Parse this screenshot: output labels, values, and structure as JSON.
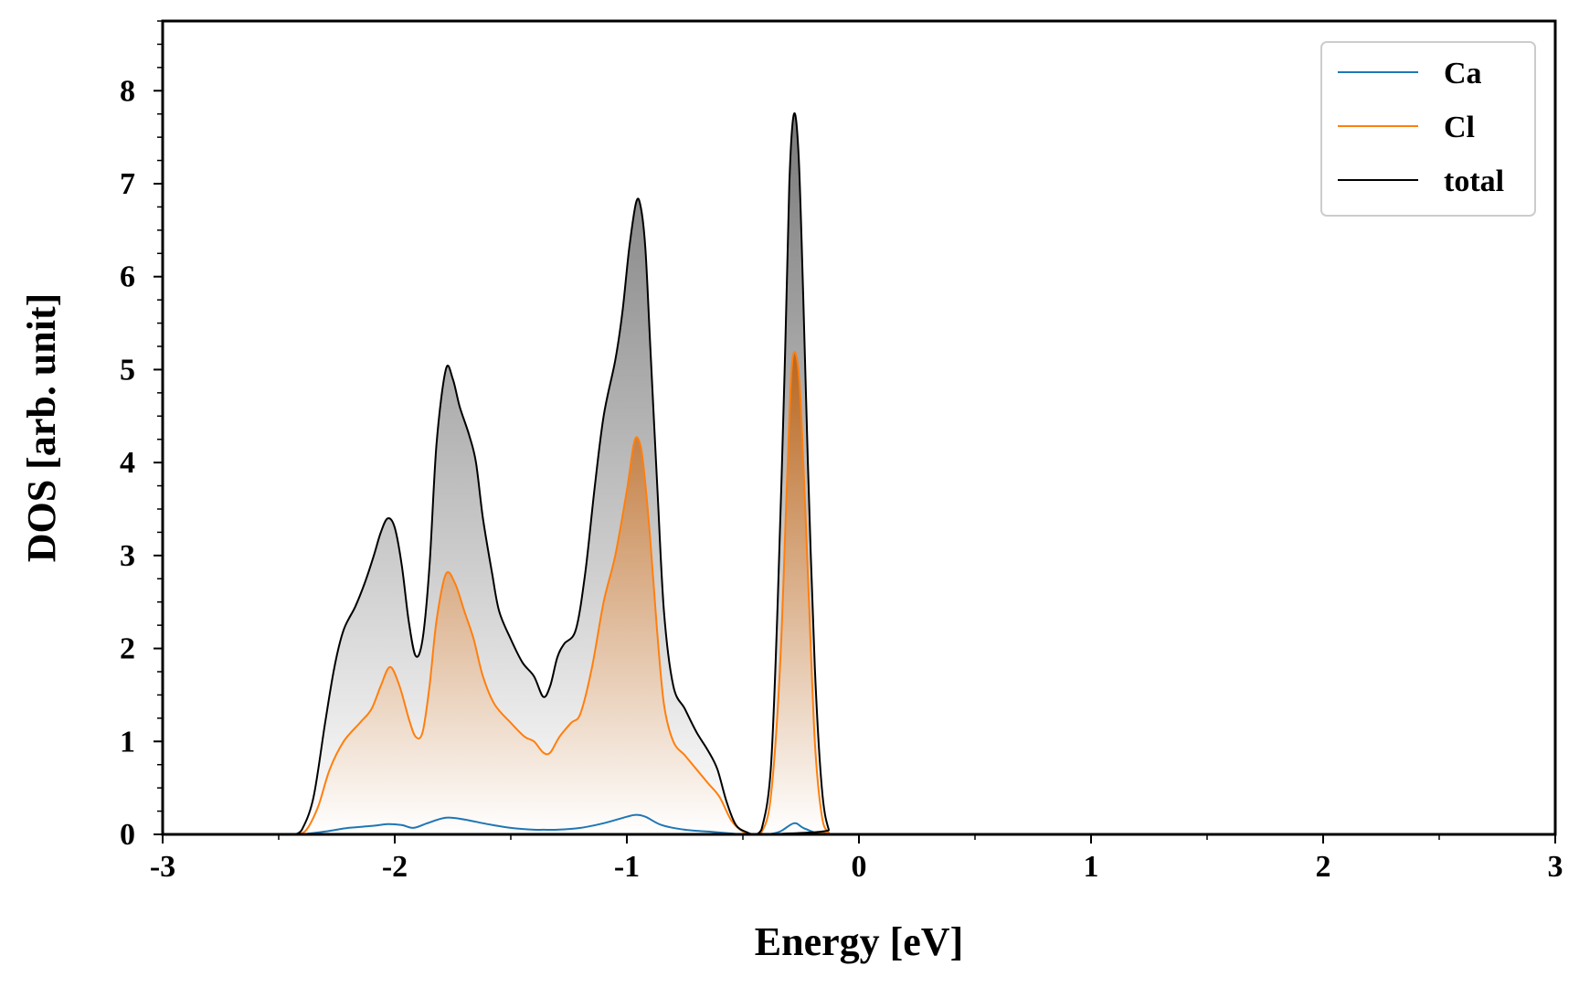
{
  "chart_data": {
    "type": "area",
    "xlabel": "Energy [eV]",
    "ylabel": "DOS [arb. unit]",
    "xlim": [
      -3,
      3
    ],
    "ylim": [
      0,
      8.75
    ],
    "x_ticks": [
      "-3",
      "-2",
      "-1",
      "0",
      "1",
      "2",
      "3"
    ],
    "y_ticks": [
      "0",
      "1",
      "2",
      "3",
      "4",
      "5",
      "6",
      "7",
      "8"
    ],
    "grid": false,
    "legend": {
      "position": "top-right",
      "entries": [
        "Ca",
        "Cl",
        "total"
      ]
    },
    "series": [
      {
        "name": "Ca",
        "color": "#1f77b4",
        "filled": false,
        "points": [
          [
            -2.4,
            0
          ],
          [
            -2.3,
            0.03
          ],
          [
            -2.2,
            0.07
          ],
          [
            -2.1,
            0.09
          ],
          [
            -2.03,
            0.11
          ],
          [
            -1.97,
            0.1
          ],
          [
            -1.92,
            0.07
          ],
          [
            -1.86,
            0.12
          ],
          [
            -1.78,
            0.18
          ],
          [
            -1.7,
            0.16
          ],
          [
            -1.6,
            0.11
          ],
          [
            -1.5,
            0.07
          ],
          [
            -1.4,
            0.05
          ],
          [
            -1.36,
            0.05
          ],
          [
            -1.3,
            0.05
          ],
          [
            -1.2,
            0.07
          ],
          [
            -1.1,
            0.12
          ],
          [
            -1.0,
            0.19
          ],
          [
            -0.96,
            0.21
          ],
          [
            -0.92,
            0.19
          ],
          [
            -0.85,
            0.1
          ],
          [
            -0.75,
            0.05
          ],
          [
            -0.65,
            0.03
          ],
          [
            -0.55,
            0.01
          ],
          [
            -0.5,
            0
          ],
          [
            -0.4,
            0
          ],
          [
            -0.34,
            0.03
          ],
          [
            -0.28,
            0.12
          ],
          [
            -0.24,
            0.07
          ],
          [
            -0.18,
            0.01
          ],
          [
            -0.14,
            0
          ],
          [
            3.0,
            0
          ]
        ]
      },
      {
        "name": "Cl",
        "color": "#ff7f0e",
        "filled": true,
        "points": [
          [
            -2.42,
            0
          ],
          [
            -2.38,
            0.05
          ],
          [
            -2.33,
            0.3
          ],
          [
            -2.28,
            0.7
          ],
          [
            -2.22,
            1.0
          ],
          [
            -2.15,
            1.2
          ],
          [
            -2.1,
            1.35
          ],
          [
            -2.06,
            1.6
          ],
          [
            -2.02,
            1.8
          ],
          [
            -1.98,
            1.6
          ],
          [
            -1.94,
            1.25
          ],
          [
            -1.91,
            1.05
          ],
          [
            -1.88,
            1.1
          ],
          [
            -1.85,
            1.6
          ],
          [
            -1.82,
            2.3
          ],
          [
            -1.78,
            2.8
          ],
          [
            -1.74,
            2.7
          ],
          [
            -1.7,
            2.4
          ],
          [
            -1.66,
            2.1
          ],
          [
            -1.62,
            1.7
          ],
          [
            -1.57,
            1.4
          ],
          [
            -1.5,
            1.2
          ],
          [
            -1.44,
            1.05
          ],
          [
            -1.4,
            1.0
          ],
          [
            -1.36,
            0.88
          ],
          [
            -1.33,
            0.88
          ],
          [
            -1.29,
            1.05
          ],
          [
            -1.24,
            1.2
          ],
          [
            -1.2,
            1.3
          ],
          [
            -1.15,
            1.8
          ],
          [
            -1.1,
            2.5
          ],
          [
            -1.05,
            3.0
          ],
          [
            -1.0,
            3.7
          ],
          [
            -0.97,
            4.2
          ],
          [
            -0.95,
            4.25
          ],
          [
            -0.93,
            4.0
          ],
          [
            -0.9,
            3.2
          ],
          [
            -0.87,
            2.2
          ],
          [
            -0.84,
            1.4
          ],
          [
            -0.8,
            1.0
          ],
          [
            -0.75,
            0.85
          ],
          [
            -0.7,
            0.7
          ],
          [
            -0.65,
            0.55
          ],
          [
            -0.6,
            0.4
          ],
          [
            -0.55,
            0.15
          ],
          [
            -0.5,
            0.03
          ],
          [
            -0.45,
            0
          ],
          [
            -0.42,
            0.02
          ],
          [
            -0.38,
            0.4
          ],
          [
            -0.34,
            1.8
          ],
          [
            -0.31,
            3.8
          ],
          [
            -0.29,
            5.0
          ],
          [
            -0.27,
            5.15
          ],
          [
            -0.25,
            4.6
          ],
          [
            -0.22,
            2.8
          ],
          [
            -0.19,
            1.0
          ],
          [
            -0.16,
            0.2
          ],
          [
            -0.13,
            0.02
          ],
          [
            -0.1,
            0
          ],
          [
            3.0,
            0
          ]
        ]
      },
      {
        "name": "total",
        "color": "#000000",
        "filled": true,
        "points": [
          [
            -2.43,
            0
          ],
          [
            -2.4,
            0.05
          ],
          [
            -2.35,
            0.4
          ],
          [
            -2.3,
            1.2
          ],
          [
            -2.26,
            1.8
          ],
          [
            -2.22,
            2.2
          ],
          [
            -2.17,
            2.45
          ],
          [
            -2.13,
            2.7
          ],
          [
            -2.09,
            3.0
          ],
          [
            -2.06,
            3.25
          ],
          [
            -2.03,
            3.4
          ],
          [
            -2.0,
            3.3
          ],
          [
            -1.97,
            2.9
          ],
          [
            -1.94,
            2.3
          ],
          [
            -1.91,
            1.92
          ],
          [
            -1.88,
            2.1
          ],
          [
            -1.85,
            2.9
          ],
          [
            -1.82,
            4.2
          ],
          [
            -1.78,
            5.0
          ],
          [
            -1.75,
            4.9
          ],
          [
            -1.72,
            4.6
          ],
          [
            -1.68,
            4.3
          ],
          [
            -1.65,
            4.0
          ],
          [
            -1.62,
            3.4
          ],
          [
            -1.58,
            2.8
          ],
          [
            -1.55,
            2.4
          ],
          [
            -1.5,
            2.1
          ],
          [
            -1.45,
            1.85
          ],
          [
            -1.4,
            1.7
          ],
          [
            -1.36,
            1.48
          ],
          [
            -1.33,
            1.6
          ],
          [
            -1.3,
            1.9
          ],
          [
            -1.27,
            2.05
          ],
          [
            -1.22,
            2.2
          ],
          [
            -1.18,
            2.8
          ],
          [
            -1.14,
            3.7
          ],
          [
            -1.1,
            4.5
          ],
          [
            -1.05,
            5.1
          ],
          [
            -1.02,
            5.6
          ],
          [
            -0.99,
            6.3
          ],
          [
            -0.96,
            6.8
          ],
          [
            -0.94,
            6.75
          ],
          [
            -0.92,
            6.3
          ],
          [
            -0.9,
            5.3
          ],
          [
            -0.87,
            3.8
          ],
          [
            -0.84,
            2.4
          ],
          [
            -0.8,
            1.6
          ],
          [
            -0.75,
            1.35
          ],
          [
            -0.7,
            1.1
          ],
          [
            -0.65,
            0.9
          ],
          [
            -0.61,
            0.7
          ],
          [
            -0.57,
            0.35
          ],
          [
            -0.53,
            0.1
          ],
          [
            -0.48,
            0.02
          ],
          [
            -0.45,
            0
          ],
          [
            -0.42,
            0.05
          ],
          [
            -0.38,
            0.7
          ],
          [
            -0.35,
            2.5
          ],
          [
            -0.32,
            5.0
          ],
          [
            -0.3,
            7.0
          ],
          [
            -0.28,
            7.75
          ],
          [
            -0.26,
            7.3
          ],
          [
            -0.24,
            5.8
          ],
          [
            -0.22,
            4.0
          ],
          [
            -0.19,
            1.8
          ],
          [
            -0.16,
            0.5
          ],
          [
            -0.13,
            0.05
          ],
          [
            -0.1,
            0
          ],
          [
            3.0,
            0
          ]
        ]
      }
    ]
  }
}
